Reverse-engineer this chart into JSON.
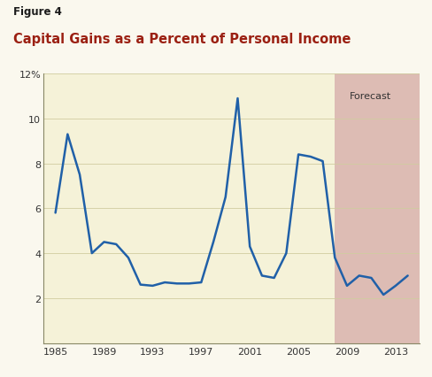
{
  "figure_label": "Figure 4",
  "title": "Capital Gains as a Percent of Personal Income",
  "figure_label_color": "#1a1a1a",
  "title_color": "#9b2012",
  "background_outer": "#faf8ee",
  "background_header": "#faf8ee",
  "background_plot": "#f5f2d8",
  "forecast_bg": "#ddbcb4",
  "forecast_start": 2008,
  "forecast_end": 2015,
  "forecast_label": "Forecast",
  "line_color": "#2060a8",
  "line_width": 1.8,
  "years": [
    1985,
    1986,
    1987,
    1988,
    1989,
    1990,
    1991,
    1992,
    1993,
    1994,
    1995,
    1996,
    1997,
    1998,
    1999,
    2000,
    2001,
    2002,
    2003,
    2004,
    2005,
    2006,
    2007,
    2008,
    2009,
    2010,
    2011,
    2012,
    2013,
    2014
  ],
  "values": [
    5.8,
    9.3,
    7.5,
    4.0,
    4.5,
    4.4,
    3.8,
    2.6,
    2.55,
    2.7,
    2.65,
    2.65,
    2.7,
    4.5,
    6.5,
    10.9,
    4.3,
    3.0,
    2.9,
    4.0,
    8.4,
    8.3,
    8.1,
    3.8,
    2.55,
    3.0,
    2.9,
    2.15,
    2.55,
    3.0
  ],
  "xlim": [
    1984,
    2015
  ],
  "ylim": [
    0,
    12
  ],
  "yticks": [
    2,
    4,
    6,
    8,
    10,
    12
  ],
  "ytick_labels": [
    "2",
    "4",
    "6",
    "8",
    "10",
    "12%"
  ],
  "xticks": [
    1985,
    1989,
    1993,
    1997,
    2001,
    2005,
    2009,
    2013
  ],
  "grid_color": "#d0cca0",
  "grid_linewidth": 0.6,
  "separator_color": "#111111",
  "spine_color": "#888866"
}
